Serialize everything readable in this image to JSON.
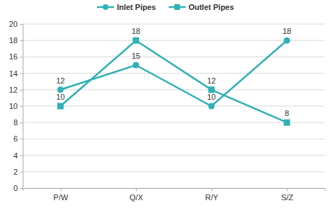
{
  "chart_data": {
    "type": "line",
    "categories": [
      "P/W",
      "Q/X",
      "R/Y",
      "S/Z"
    ],
    "series": [
      {
        "name": "Inlet Pipes",
        "color": "#2fb0b5",
        "marker": "circle",
        "values": [
          12,
          15,
          10,
          18
        ]
      },
      {
        "name": "Outlet Pipes",
        "color": "#2fb0b5",
        "marker": "square",
        "values": [
          10,
          18,
          12,
          8
        ]
      }
    ],
    "ylim": [
      0,
      20
    ],
    "yticks": [
      0,
      2,
      4,
      6,
      8,
      10,
      12,
      14,
      16,
      18,
      20
    ],
    "grid": true,
    "legend": "top",
    "data_labels": true
  }
}
